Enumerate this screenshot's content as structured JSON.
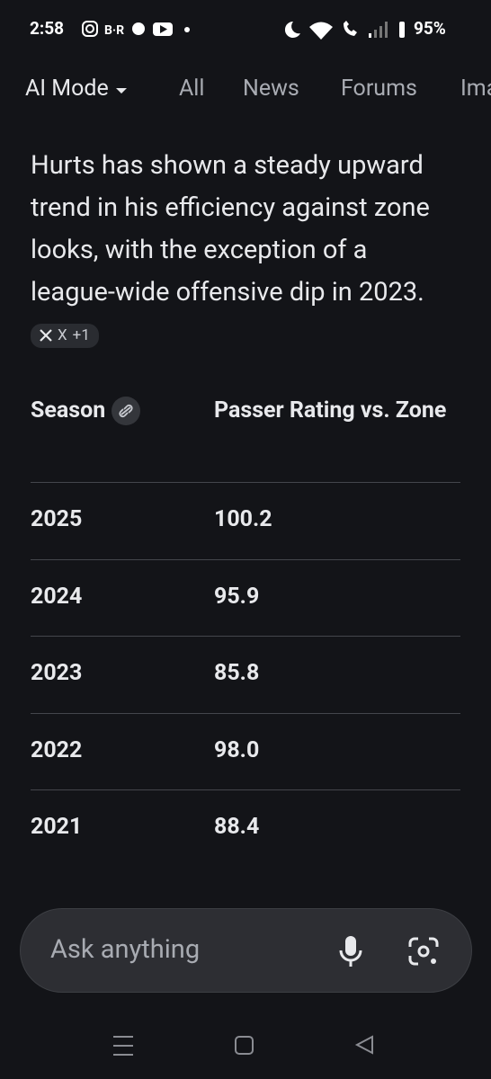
{
  "status_bar": {
    "time": "2:58",
    "app_label": "B·R",
    "battery": "95%"
  },
  "tabs": [
    "AI Mode",
    "All",
    "News",
    "Forums",
    "Ima"
  ],
  "answer": {
    "text": "Hurts has shown a steady upward trend in his efficiency against zone looks, with the exception of a league-wide offensive dip in 2023.",
    "source": "X",
    "source_more": "+1"
  },
  "table": {
    "headers": [
      "Season",
      "Passer Rating vs. Zone"
    ],
    "rows": [
      [
        "2025",
        "100.2"
      ],
      [
        "2024",
        "95.9"
      ],
      [
        "2023",
        "85.8"
      ],
      [
        "2022",
        "98.0"
      ],
      [
        "2021",
        "88.4"
      ]
    ]
  },
  "input": {
    "placeholder": "Ask anything"
  }
}
